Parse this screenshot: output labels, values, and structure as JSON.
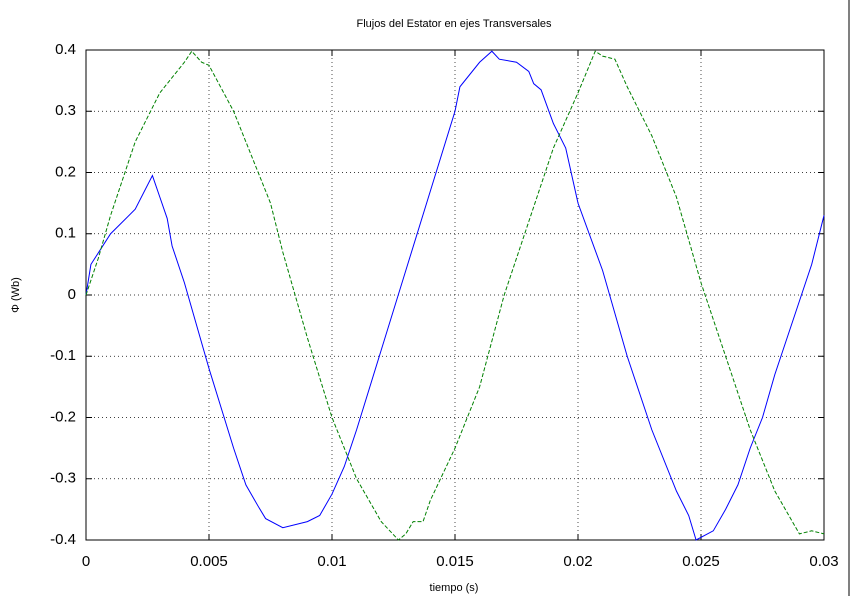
{
  "chart_data": {
    "type": "line",
    "title": "Flujos del Estator en ejes Transversales",
    "xlabel": "tiempo (s)",
    "ylabel": "Φ (Wb)",
    "xlim": [
      0,
      0.03
    ],
    "ylim": [
      -0.4,
      0.4
    ],
    "xticks": [
      0,
      0.005,
      0.01,
      0.015,
      0.02,
      0.025,
      0.03
    ],
    "yticks": [
      -0.4,
      -0.3,
      -0.2,
      -0.1,
      0,
      0.1,
      0.2,
      0.3,
      0.4
    ],
    "grid": true,
    "series": [
      {
        "color": "#0000ff",
        "dash": false,
        "x": [
          0,
          0.0002,
          0.001,
          0.002,
          0.0027,
          0.003,
          0.0033,
          0.0035,
          0.004,
          0.005,
          0.006,
          0.0065,
          0.007,
          0.0073,
          0.008,
          0.009,
          0.0095,
          0.01,
          0.0105,
          0.011,
          0.012,
          0.013,
          0.014,
          0.015,
          0.0152,
          0.016,
          0.0165,
          0.0168,
          0.0175,
          0.018,
          0.0182,
          0.0185,
          0.019,
          0.0195,
          0.02,
          0.021,
          0.022,
          0.023,
          0.024,
          0.0245,
          0.0248,
          0.0255,
          0.026,
          0.0265,
          0.027,
          0.0275,
          0.028,
          0.029,
          0.0295,
          0.03
        ],
        "values": [
          0,
          0.05,
          0.1,
          0.14,
          0.195,
          0.16,
          0.125,
          0.08,
          0.02,
          -0.12,
          -0.25,
          -0.31,
          -0.345,
          -0.365,
          -0.38,
          -0.37,
          -0.36,
          -0.325,
          -0.28,
          -0.22,
          -0.09,
          0.04,
          0.17,
          0.3,
          0.34,
          0.38,
          0.398,
          0.385,
          0.38,
          0.365,
          0.345,
          0.335,
          0.28,
          0.24,
          0.15,
          0.04,
          -0.1,
          -0.22,
          -0.32,
          -0.36,
          -0.4,
          -0.385,
          -0.35,
          -0.31,
          -0.25,
          -0.2,
          -0.13,
          -0.01,
          0.05,
          0.13
        ]
      },
      {
        "color": "#008000",
        "dash": true,
        "x": [
          0,
          0.0005,
          0.001,
          0.002,
          0.003,
          0.004,
          0.0043,
          0.0047,
          0.005,
          0.006,
          0.007,
          0.0075,
          0.008,
          0.009,
          0.01,
          0.011,
          0.012,
          0.0127,
          0.013,
          0.0133,
          0.0137,
          0.014,
          0.015,
          0.016,
          0.017,
          0.018,
          0.019,
          0.02,
          0.0207,
          0.021,
          0.0215,
          0.022,
          0.023,
          0.024,
          0.025,
          0.026,
          0.027,
          0.028,
          0.029,
          0.0295,
          0.03
        ],
        "values": [
          0,
          0.06,
          0.13,
          0.25,
          0.33,
          0.38,
          0.398,
          0.38,
          0.375,
          0.3,
          0.2,
          0.15,
          0.07,
          -0.07,
          -0.2,
          -0.3,
          -0.37,
          -0.4,
          -0.39,
          -0.37,
          -0.37,
          -0.335,
          -0.25,
          -0.15,
          0,
          0.12,
          0.24,
          0.33,
          0.398,
          0.39,
          0.385,
          0.34,
          0.26,
          0.16,
          0.02,
          -0.1,
          -0.22,
          -0.32,
          -0.39,
          -0.385,
          -0.39
        ]
      }
    ]
  }
}
